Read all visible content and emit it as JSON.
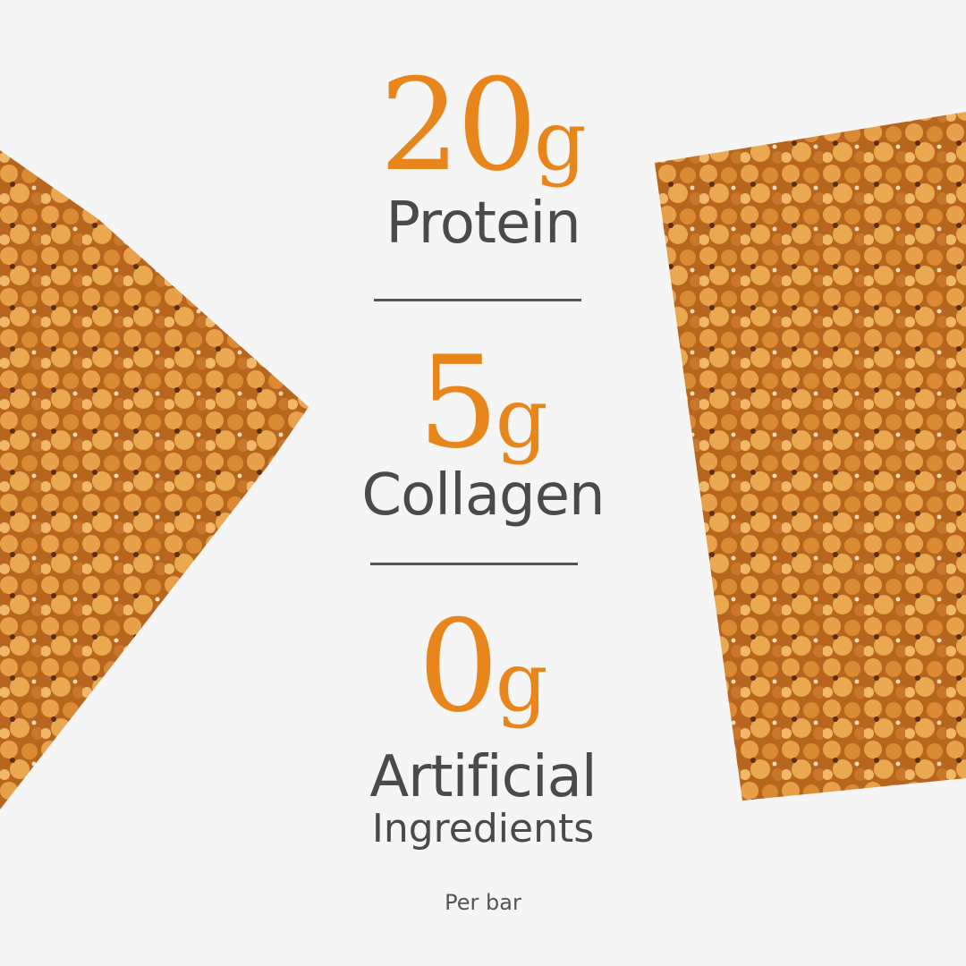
{
  "stats": [
    {
      "value": "20",
      "unit": "g",
      "label": "Protein"
    },
    {
      "value": "5",
      "unit": "g",
      "label": "Collagen"
    },
    {
      "value": "0",
      "unit": "g",
      "label": "Artificial",
      "label2": "Ingredients"
    }
  ],
  "footnote": "Per bar",
  "colors": {
    "accent": "#e8861c",
    "text": "#4a4a4a",
    "background": "#f5f5f5",
    "bar": "#c9782a"
  }
}
